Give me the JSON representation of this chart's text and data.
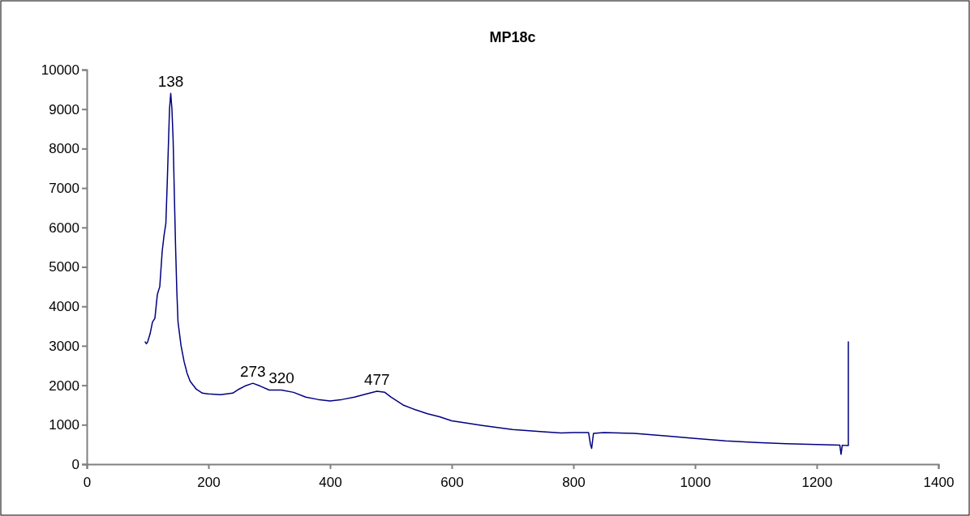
{
  "chart_data": {
    "type": "line",
    "title": "MP18c",
    "x": [
      96,
      98,
      100,
      104,
      108,
      112,
      116,
      120,
      124,
      127,
      130,
      132,
      134,
      136,
      138,
      140,
      142,
      144,
      146,
      148,
      150,
      155,
      160,
      165,
      170,
      180,
      190,
      200,
      220,
      240,
      250,
      260,
      273,
      285,
      300,
      320,
      340,
      360,
      380,
      400,
      420,
      440,
      460,
      477,
      490,
      500,
      520,
      540,
      560,
      580,
      600,
      620,
      650,
      700,
      750,
      780,
      800,
      825,
      828,
      830,
      833,
      850,
      900,
      950,
      1000,
      1050,
      1100,
      1150,
      1200,
      1238,
      1240,
      1242,
      1250,
      1252,
      1252
    ],
    "series": [
      {
        "color": "#000080",
        "values": [
          3100,
          3050,
          3100,
          3300,
          3600,
          3700,
          4300,
          4500,
          5400,
          5800,
          6100,
          7000,
          8000,
          9000,
          9400,
          9000,
          8200,
          6800,
          5500,
          4400,
          3600,
          3000,
          2600,
          2300,
          2100,
          1900,
          1800,
          1780,
          1760,
          1800,
          1900,
          1980,
          2050,
          1980,
          1880,
          1880,
          1820,
          1700,
          1640,
          1600,
          1640,
          1700,
          1780,
          1850,
          1820,
          1700,
          1500,
          1380,
          1280,
          1200,
          1100,
          1050,
          980,
          880,
          820,
          790,
          800,
          800,
          500,
          400,
          780,
          800,
          780,
          720,
          650,
          590,
          550,
          520,
          500,
          480,
          250,
          480,
          470,
          470,
          3100
        ]
      }
    ],
    "xlim": [
      0,
      1400
    ],
    "xticks": [
      0,
      200,
      400,
      600,
      800,
      1000,
      1200,
      1400
    ],
    "ylim": [
      0,
      10000
    ],
    "yticks": [
      0,
      1000,
      2000,
      3000,
      4000,
      5000,
      6000,
      7000,
      8000,
      9000,
      10000
    ],
    "grid": false,
    "marker": "none",
    "line_style": "solid",
    "annotations": [
      {
        "text": "138",
        "x": 138,
        "y": 9400
      },
      {
        "text": "273",
        "x": 273,
        "y": 2050
      },
      {
        "text": "320",
        "x": 320,
        "y": 1880
      },
      {
        "text": "477",
        "x": 477,
        "y": 1850
      }
    ]
  }
}
